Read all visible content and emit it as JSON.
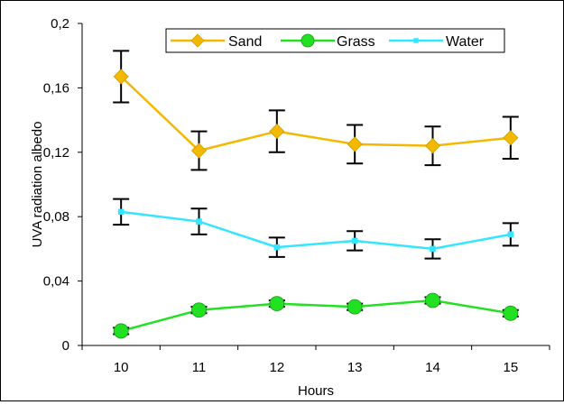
{
  "chart_data": {
    "type": "line",
    "title": "",
    "xlabel": "Hours",
    "ylabel": "UVA radiation albedo",
    "categories": [
      "10",
      "11",
      "12",
      "13",
      "14",
      "15"
    ],
    "ylim": [
      0,
      0.2
    ],
    "yticks": [
      0,
      0.04,
      0.08,
      0.12,
      0.16,
      0.2
    ],
    "ytick_labels": [
      "0",
      "0,04",
      "0,08",
      "0,12",
      "0,16",
      "0,2"
    ],
    "grid": false,
    "legend": "top-center",
    "series": [
      {
        "name": "Sand",
        "color": "#f5b800",
        "marker": "diamond",
        "values": [
          0.167,
          0.121,
          0.133,
          0.125,
          0.124,
          0.129
        ],
        "error": [
          0.016,
          0.012,
          0.013,
          0.012,
          0.012,
          0.013
        ]
      },
      {
        "name": "Grass",
        "color": "#22e022",
        "marker": "circle",
        "values": [
          0.009,
          0.022,
          0.026,
          0.024,
          0.028,
          0.02
        ],
        "error": [
          0.002,
          0.002,
          0.002,
          0.002,
          0.002,
          0.002
        ]
      },
      {
        "name": "Water",
        "color": "#33e6ff",
        "marker": "square",
        "values": [
          0.083,
          0.077,
          0.061,
          0.065,
          0.06,
          0.069
        ],
        "error": [
          0.008,
          0.008,
          0.006,
          0.006,
          0.006,
          0.007
        ]
      }
    ]
  }
}
